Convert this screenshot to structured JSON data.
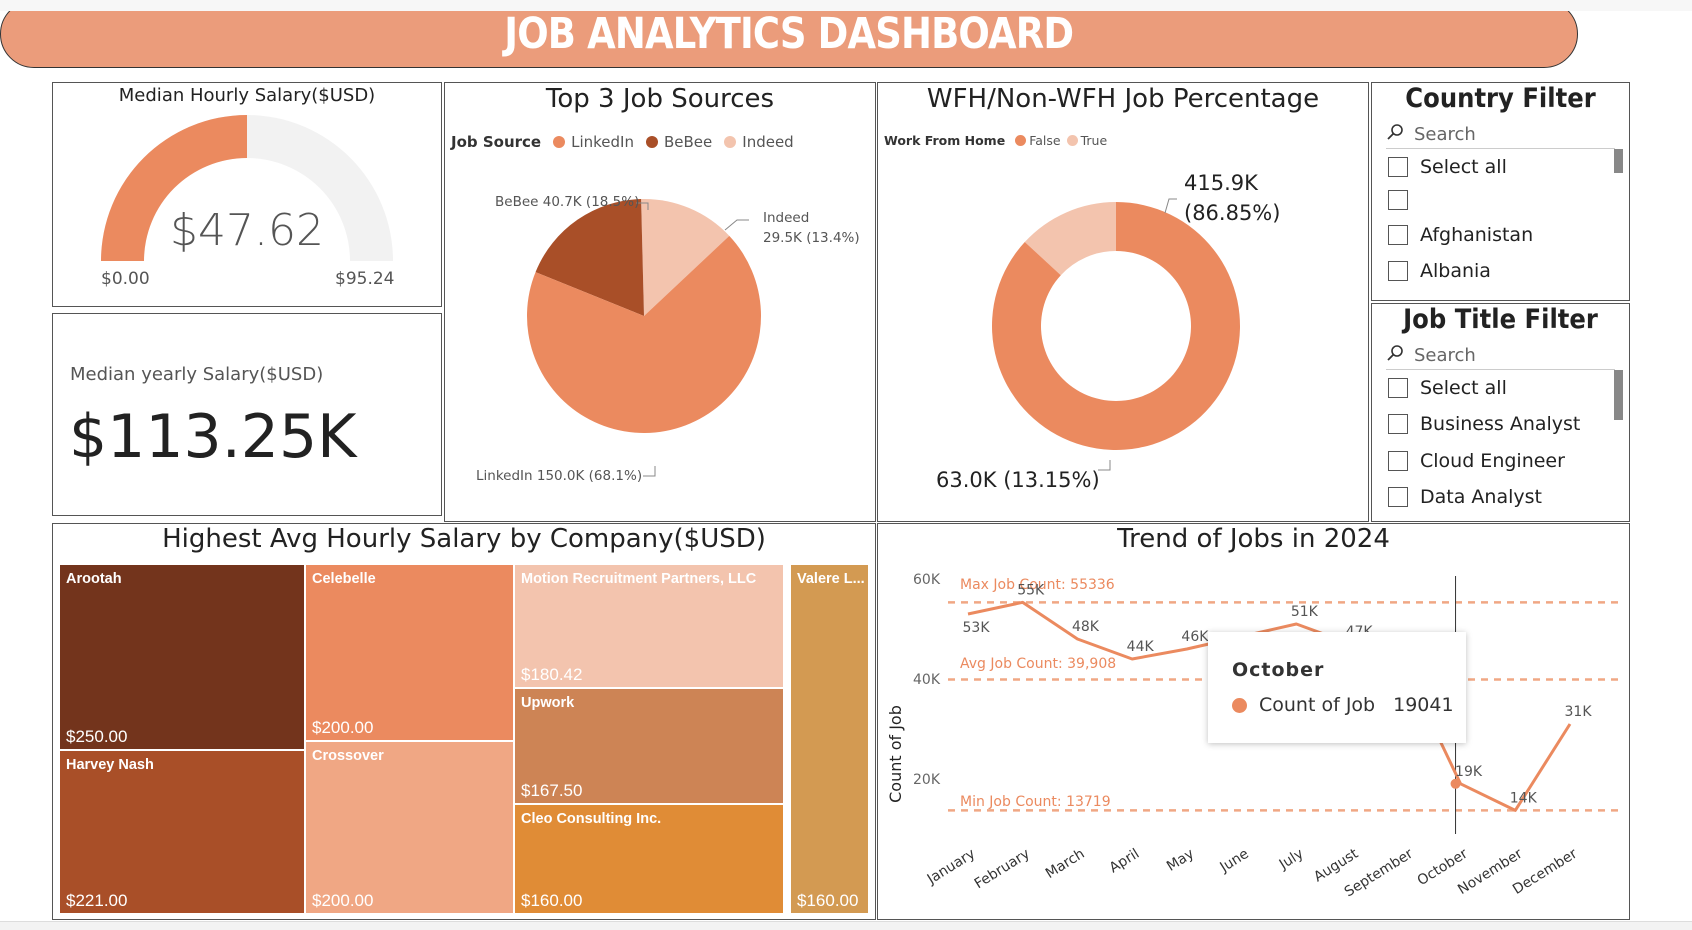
{
  "header": {
    "title": "JOB ANALYTICS DASHBOARD"
  },
  "gauge": {
    "title": "Median Hourly Salary($USD)",
    "value_label": "$47.62",
    "min_label": "$0.00",
    "max_label": "$95.24",
    "value": 47.62,
    "min": 0,
    "max": 95.24
  },
  "kpi": {
    "title": "Median yearly Salary($USD)",
    "value": "$113.25K"
  },
  "colors": {
    "primary": "#eb8a5f",
    "dark": "#a94f28",
    "light": "#f3c4ae",
    "header": "#eb9c7b"
  },
  "sources": {
    "title": "Top 3 Job Sources",
    "legend_title": "Job Source",
    "legend": [
      "LinkedIn",
      "BeBee",
      "Indeed"
    ],
    "labels": [
      "LinkedIn 150.0K (68.1%)",
      "BeBee 40.7K (18.5%)",
      "Indeed",
      "29.5K (13.4%)"
    ]
  },
  "wfh": {
    "title": "WFH/Non-WFH Job Percentage",
    "legend_title": "Work From Home",
    "legend": [
      "False",
      "True"
    ],
    "label_false_1": "415.9K",
    "label_false_2": "(86.85%)",
    "label_true": "63.0K (13.15%)"
  },
  "country_filter": {
    "title": "Country Filter",
    "search": "Search",
    "options": [
      "Select all",
      "",
      "Afghanistan",
      "Albania"
    ]
  },
  "job_filter": {
    "title": "Job Title Filter",
    "search": "Search",
    "options": [
      "Select all",
      "Business Analyst",
      "Cloud Engineer",
      "Data Analyst"
    ]
  },
  "treemap": {
    "title": "Highest Avg Hourly Salary by Company($USD)",
    "items": [
      {
        "name": "Arootah",
        "value": "$250.00",
        "color": "#73341c"
      },
      {
        "name": "Harvey Nash",
        "value": "$221.00",
        "color": "#a94f28"
      },
      {
        "name": "Celebelle",
        "value": "$200.00",
        "color": "#eb8a5f"
      },
      {
        "name": "Crossover",
        "value": "$200.00",
        "color": "#f0a784"
      },
      {
        "name": "Motion Recruitment Partners, LLC",
        "value": "$180.42",
        "color": "#f3c4ae"
      },
      {
        "name": "Upwork",
        "value": "$167.50",
        "color": "#cd8455"
      },
      {
        "name": "Cleo Consulting Inc.",
        "value": "$160.00",
        "color": "#e08c36"
      },
      {
        "name": "Valere L...",
        "value": "$160.00",
        "color": "#d39a52"
      }
    ]
  },
  "trend": {
    "title": "Trend of Jobs in 2024",
    "ylabel": "Count of Job",
    "max_label": "Max Job Count: 55336",
    "avg_label": "Avg Job Count: 39,908",
    "min_label": "Min Job Count: 13719",
    "tooltip": {
      "title": "October",
      "series": "Count of Job",
      "value": "19041"
    }
  },
  "chart_data": [
    {
      "type": "pie",
      "title": "Top 3 Job Sources",
      "categories": [
        "LinkedIn",
        "BeBee",
        "Indeed"
      ],
      "values": [
        150.0,
        40.7,
        29.5
      ],
      "percent": [
        68.1,
        18.5,
        13.4
      ],
      "legend": "top"
    },
    {
      "type": "pie",
      "title": "WFH/Non-WFH Job Percentage",
      "categories": [
        "False",
        "True"
      ],
      "values": [
        415.9,
        63.0
      ],
      "percent": [
        86.85,
        13.15
      ],
      "legend": "top"
    },
    {
      "type": "table",
      "title": "Highest Avg Hourly Salary by Company($USD)",
      "categories": [
        "Arootah",
        "Harvey Nash",
        "Celebelle",
        "Crossover",
        "Motion Recruitment Partners, LLC",
        "Upwork",
        "Cleo Consulting Inc.",
        "Valere L..."
      ],
      "values": [
        250.0,
        221.0,
        200.0,
        200.0,
        180.42,
        167.5,
        160.0,
        160.0
      ]
    },
    {
      "type": "line",
      "title": "Trend of Jobs in 2024",
      "ylabel": "Count of Job",
      "x": [
        "January",
        "February",
        "March",
        "April",
        "May",
        "June",
        "July",
        "August",
        "September",
        "October",
        "November",
        "December"
      ],
      "y": [
        53000,
        55336,
        48000,
        44000,
        46000,
        null,
        51000,
        47000,
        null,
        19041,
        13719,
        31000
      ],
      "point_labels": [
        "53K",
        "55K",
        "48K",
        "44K",
        "46K",
        "",
        "51K",
        "47K",
        "",
        "19K",
        "14K",
        "31K"
      ],
      "yticks": [
        "20K",
        "40K",
        "60K"
      ],
      "ylim": [
        13000,
        62000
      ],
      "reference_lines": {
        "max": 55336,
        "avg": 39908,
        "min": 13719
      }
    }
  ]
}
